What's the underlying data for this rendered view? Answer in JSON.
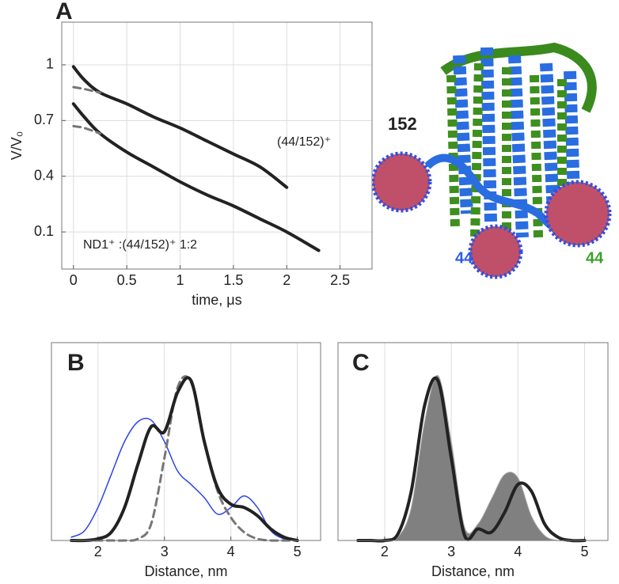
{
  "chart_data": [
    {
      "type": "line",
      "panel_label": "A",
      "x_label": "time, μs",
      "y_label": "V/V₀",
      "x": [
        0,
        0.1,
        0.25,
        0.5,
        0.75,
        1,
        1.25,
        1.5,
        1.75,
        2,
        2.3
      ],
      "series": [
        {
          "color": "#222222",
          "values": [
            0.99,
            0.92,
            0.85,
            0.79,
            0.72,
            0.66,
            0.59,
            0.52,
            0.45,
            0.34,
            null
          ]
        },
        {
          "color": "#222222",
          "values": [
            0.79,
            0.72,
            0.63,
            0.53,
            0.45,
            0.37,
            0.3,
            0.24,
            0.17,
            0.1,
            0.0
          ]
        },
        {
          "color": "#777777",
          "dashed": true,
          "values": [
            0.88,
            0.87,
            0.85,
            null,
            null,
            null,
            null,
            null,
            null,
            null,
            null
          ]
        },
        {
          "color": "#777777",
          "dashed": true,
          "values": [
            0.67,
            0.66,
            0.63,
            null,
            null,
            null,
            null,
            null,
            null,
            null,
            null
          ]
        }
      ],
      "annotations": [
        "(44/152)⁺",
        "ND1⁺ :(44/152)⁺  1:2"
      ],
      "xlim": [
        -0.11,
        2.8
      ],
      "xticks": [
        0,
        0.5,
        1,
        1.5,
        2,
        2.5
      ],
      "ylim": [
        -0.1,
        1.23
      ],
      "yticks": [
        0.1,
        0.4,
        0.7,
        1
      ],
      "grid": true
    },
    {
      "type": "line",
      "panel_label": "B",
      "x_label": "Distance, nm",
      "x": [
        1.6,
        1.8,
        2.0,
        2.2,
        2.4,
        2.6,
        2.8,
        3.0,
        3.2,
        3.4,
        3.6,
        3.8,
        4.0,
        4.2,
        4.4,
        4.6,
        4.8,
        5.0
      ],
      "series": [
        {
          "color": "#2b44e8",
          "values": [
            0.02,
            0.06,
            0.2,
            0.4,
            0.6,
            0.72,
            0.73,
            0.6,
            0.42,
            0.34,
            0.26,
            0.16,
            0.2,
            0.27,
            0.2,
            0.06,
            0.01,
            0
          ]
        },
        {
          "color": "#777777",
          "dashed": true,
          "values": [
            0,
            0,
            0,
            0,
            0,
            0.01,
            0.1,
            0.5,
            0.93,
            0.96,
            0.6,
            0.3,
            0.14,
            0.05,
            0.01,
            0,
            0,
            0
          ]
        },
        {
          "color": "#222222",
          "values": [
            0,
            0,
            0.01,
            0.05,
            0.2,
            0.46,
            0.69,
            0.66,
            0.9,
            0.97,
            0.6,
            0.32,
            0.22,
            0.2,
            0.15,
            0.07,
            0.02,
            0
          ]
        }
      ],
      "xlim": [
        1.3,
        5.35
      ],
      "xticks": [
        2,
        3,
        4,
        5
      ],
      "ylim": [
        0,
        1.2
      ],
      "yticks": [],
      "grid": true
    },
    {
      "type": "line",
      "panel_label": "C",
      "x_label": "Distance, nm",
      "x": [
        1.6,
        1.8,
        2.0,
        2.2,
        2.4,
        2.6,
        2.8,
        3.0,
        3.2,
        3.4,
        3.6,
        3.8,
        4.0,
        4.2,
        4.4,
        4.6,
        4.8,
        5.0
      ],
      "series": [
        {
          "color": "#808080",
          "filled": true,
          "values": [
            0,
            0,
            0,
            0.02,
            0.2,
            0.72,
            1.0,
            0.6,
            0.08,
            0.1,
            0.25,
            0.4,
            0.38,
            0.15,
            0.03,
            0,
            0,
            0
          ]
        },
        {
          "color": "#222222",
          "values": [
            0,
            0,
            0,
            0.04,
            0.3,
            0.82,
            0.97,
            0.5,
            0.03,
            0.07,
            0.05,
            0.17,
            0.34,
            0.3,
            0.1,
            0.02,
            0,
            0
          ]
        }
      ],
      "xlim": [
        1.3,
        5.35
      ],
      "xticks": [
        2,
        3,
        4,
        5
      ],
      "ylim": [
        0,
        1.2
      ],
      "yticks": [],
      "grid": true
    }
  ],
  "structure_labels": [
    {
      "text": "152",
      "color": "#222222"
    },
    {
      "text": "44",
      "color": "#2b5ce8"
    },
    {
      "text": "44",
      "color": "#3aa12a"
    }
  ]
}
